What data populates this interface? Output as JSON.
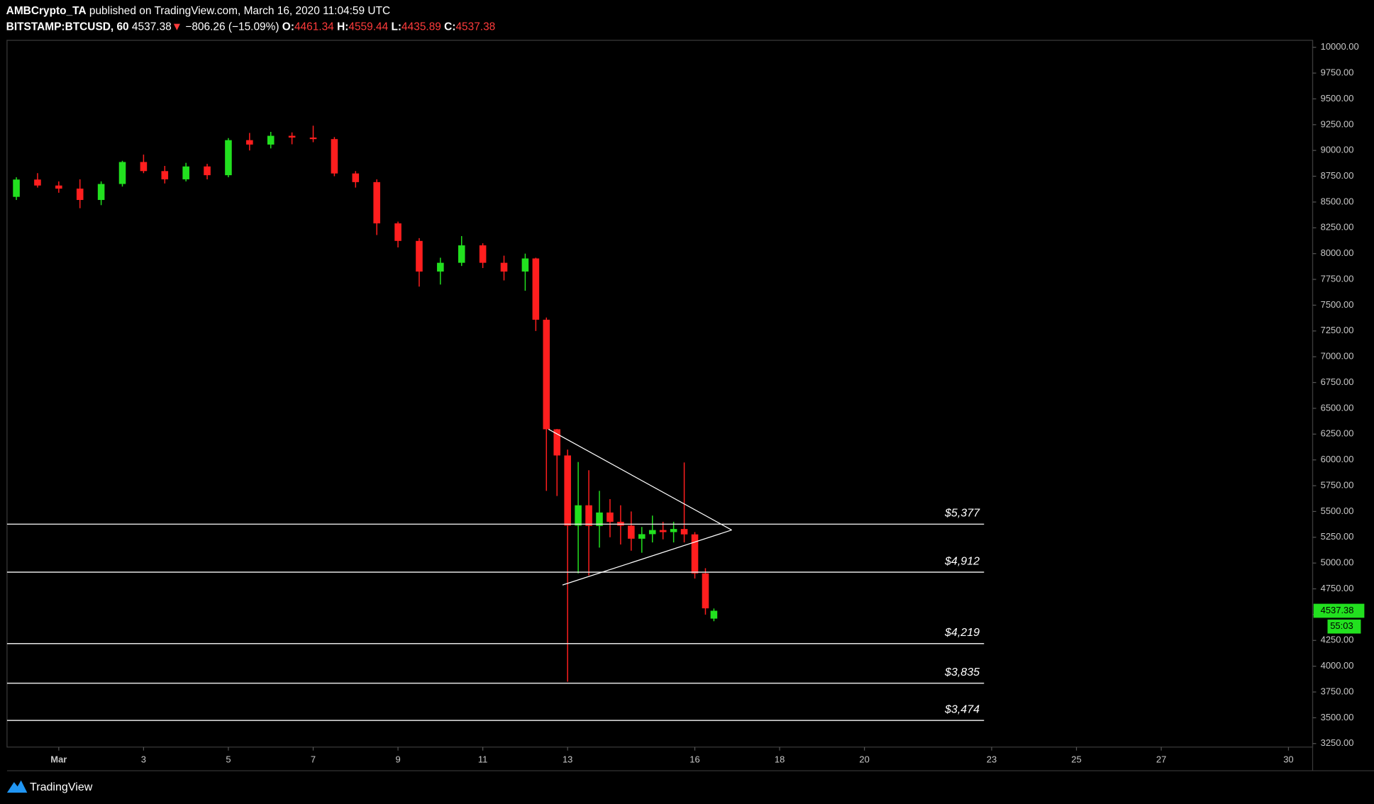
{
  "header": {
    "author": "AMBCrypto_TA",
    "published": " published on TradingView.com, March 16, 2020 11:04:59 UTC",
    "symbol": "BITSTAMP:BTCUSD, 60",
    "price": "4537.38",
    "change_arrow": "▼",
    "change": "−806.26 (−15.09%)",
    "open_label": "O:",
    "open": "4461.34",
    "high_label": "H:",
    "high": "4559.44",
    "low_label": "L:",
    "low": "4435.89",
    "close_label": "C:",
    "close": "4537.38"
  },
  "chart_data": {
    "type": "candlestick",
    "x": [
      0,
      0.5,
      1,
      1.5,
      2,
      2.5,
      3,
      3.5,
      4,
      4.5,
      5,
      5.5,
      6,
      6.5,
      7,
      7.5,
      8,
      8.5,
      9,
      9.5,
      10,
      10.5,
      11,
      11.5,
      12,
      12.25,
      12.5,
      12.75,
      13,
      13.25,
      13.5,
      13.75,
      14,
      14.25,
      14.5,
      14.75,
      15,
      15.25,
      15.5,
      15.75,
      16,
      16.25,
      16.45
    ],
    "open": [
      8550,
      8718,
      8660,
      8630,
      8520,
      8675,
      8888,
      8800,
      8720,
      8845,
      8760,
      9100,
      9057,
      9142,
      9125,
      9110,
      8777,
      8693,
      8293,
      8123,
      7826,
      7911,
      8080,
      7911,
      7826,
      7953,
      7359,
      6297,
      6043,
      5363,
      5560,
      5360,
      5490,
      5400,
      5363,
      5236,
      5280,
      5320,
      5300,
      5330,
      5278,
      4900,
      4461.34
    ],
    "high": [
      8740,
      8780,
      8700,
      8720,
      8700,
      8900,
      8960,
      8850,
      8880,
      8870,
      9120,
      9170,
      9180,
      9175,
      9240,
      9130,
      8800,
      8720,
      8310,
      8150,
      7960,
      8170,
      8100,
      7980,
      8000,
      7960,
      7380,
      6300,
      6100,
      5980,
      5900,
      5700,
      5620,
      5560,
      5500,
      5350,
      5460,
      5400,
      5400,
      5975,
      5300,
      4950,
      4559.44
    ],
    "low": [
      8520,
      8640,
      8590,
      8440,
      8470,
      8650,
      8780,
      8680,
      8700,
      8720,
      8740,
      9000,
      9020,
      9060,
      9080,
      8750,
      8640,
      8180,
      8060,
      7680,
      7700,
      7880,
      7860,
      7740,
      7640,
      7250,
      5700,
      5650,
      3850,
      4900,
      4880,
      5150,
      5250,
      5180,
      5120,
      5100,
      5200,
      5230,
      5200,
      5200,
      4850,
      4500,
      4435.89
    ],
    "close": [
      8718,
      8660,
      8630,
      8520,
      8675,
      8888,
      8800,
      8720,
      8845,
      8760,
      9100,
      9057,
      9142,
      9125,
      9110,
      8777,
      8693,
      8293,
      8123,
      7826,
      7911,
      8080,
      7911,
      7826,
      7953,
      7359,
      6297,
      6043,
      5363,
      5560,
      5360,
      5490,
      5400,
      5363,
      5236,
      5280,
      5320,
      5300,
      5330,
      5278,
      4900,
      4561,
      4537.38
    ],
    "up_color": "#22e01f",
    "down_color": "#ff1e1e",
    "xlim": [
      -0.22,
      30.57
    ],
    "ylim": [
      3216,
      10068
    ],
    "xticks": [
      {
        "value": 1,
        "label": "Mar"
      },
      3,
      5,
      7,
      9,
      11,
      13,
      16,
      18,
      20,
      23,
      25,
      27,
      30
    ],
    "yticks": [
      {
        "value": 3250,
        "label": "3250.00"
      },
      {
        "value": 3500,
        "label": "3500.00"
      },
      {
        "value": 3750,
        "label": "3750.00"
      },
      {
        "value": 4000,
        "label": "4000.00"
      },
      {
        "value": 4250,
        "label": "4250.00"
      },
      {
        "value": 4500,
        "label": "4500.00"
      },
      {
        "value": 4750,
        "label": "4750.00"
      },
      {
        "value": 5000,
        "label": "5000.00"
      },
      {
        "value": 5250,
        "label": "5250.00"
      },
      {
        "value": 5500,
        "label": "5500.00"
      },
      {
        "value": 5750,
        "label": "5750.00"
      },
      {
        "value": 6000,
        "label": "6000.00"
      },
      {
        "value": 6250,
        "label": "6250.00"
      },
      {
        "value": 6500,
        "label": "6500.00"
      },
      {
        "value": 6750,
        "label": "6750.00"
      },
      {
        "value": 7000,
        "label": "7000.00"
      },
      {
        "value": 7250,
        "label": "7250.00"
      },
      {
        "value": 7500,
        "label": "7500.00"
      },
      {
        "value": 7750,
        "label": "7750.00"
      },
      {
        "value": 8000,
        "label": "8000.00"
      },
      {
        "value": 8250,
        "label": "8250.00"
      },
      {
        "value": 8500,
        "label": "8500.00"
      },
      {
        "value": 8750,
        "label": "8750.00"
      },
      {
        "value": 9000,
        "label": "9000.00"
      },
      {
        "value": 9250,
        "label": "9250.00"
      },
      {
        "value": 9500,
        "label": "9500.00"
      },
      {
        "value": 9750,
        "label": "9750.00"
      },
      {
        "value": 10000,
        "label": "10000.00"
      }
    ],
    "levels": [
      {
        "value": 5377,
        "label": "$5,377"
      },
      {
        "value": 4912,
        "label": "$4,912"
      },
      {
        "value": 4219,
        "label": "$4,219"
      },
      {
        "value": 3835,
        "label": "$3,835"
      },
      {
        "value": 3474,
        "label": "$3,474"
      }
    ],
    "trendlines": [
      [
        [
          12.55,
          6297
        ],
        [
          16.87,
          5320
        ]
      ],
      [
        [
          12.88,
          4787
        ],
        [
          16.87,
          5320
        ]
      ]
    ],
    "price_tag_timer": "55:03"
  },
  "footer": {
    "brand": "TradingView"
  }
}
